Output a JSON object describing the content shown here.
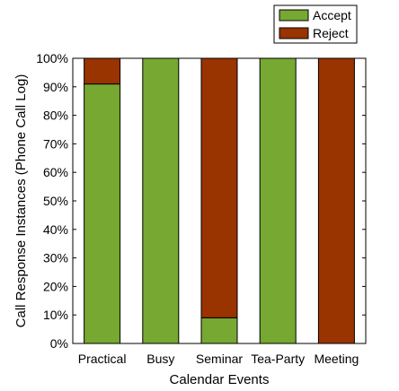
{
  "chart_data": {
    "type": "bar",
    "stacked": true,
    "categories": [
      "Practical",
      "Busy",
      "Seminar",
      "Tea-Party",
      "Meeting"
    ],
    "series": [
      {
        "name": "Accept",
        "color": "#76a832",
        "values": [
          91,
          100,
          9,
          100,
          0
        ]
      },
      {
        "name": "Reject",
        "color": "#993300",
        "values": [
          9,
          0,
          91,
          0,
          100
        ]
      }
    ],
    "xlabel": "Calendar Events",
    "ylabel": "Call Response Instances (Phone Call Log)",
    "ylim": [
      0,
      100
    ],
    "yticks": [
      "0%",
      "10%",
      "20%",
      "30%",
      "40%",
      "50%",
      "60%",
      "70%",
      "80%",
      "90%",
      "100%"
    ],
    "legend_position": "top-right",
    "grid": false
  }
}
